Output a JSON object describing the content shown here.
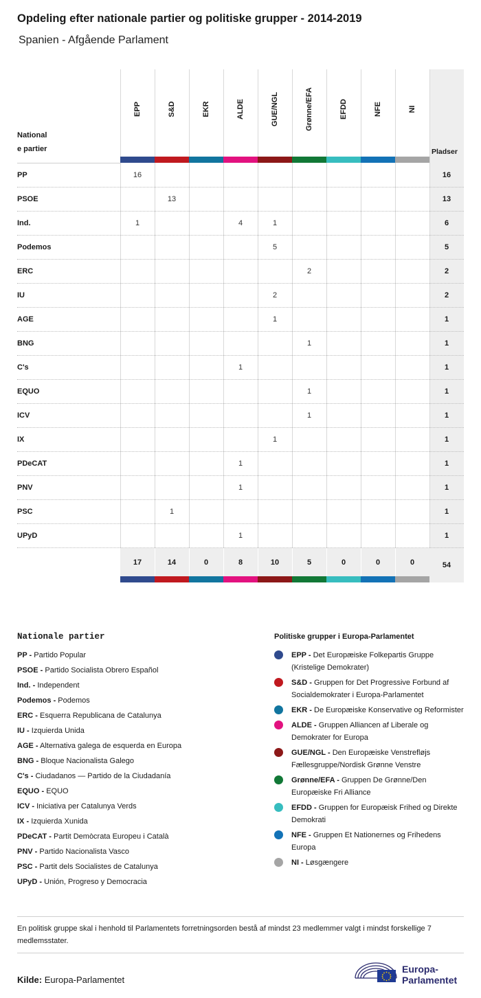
{
  "title": "Opdeling efter nationale partier og politiske grupper - 2014-2019",
  "subtitle": "Spanien - Afgående Parlament",
  "table": {
    "national_header_line1": "National",
    "national_header_line2": "e partier",
    "seats_header": "Pladser",
    "groups": [
      {
        "key": "EPP",
        "color": "#2f4a8d"
      },
      {
        "key": "S&D",
        "color": "#c0191f"
      },
      {
        "key": "EKR",
        "color": "#11759f"
      },
      {
        "key": "ALDE",
        "color": "#e2127f"
      },
      {
        "key": "GUE/NGL",
        "color": "#8c1818"
      },
      {
        "key": "Grønne/EFA",
        "color": "#117836"
      },
      {
        "key": "EFDD",
        "color": "#37bdbf"
      },
      {
        "key": "NFE",
        "color": "#1372b6"
      },
      {
        "key": "NI",
        "color": "#a5a5a5"
      }
    ],
    "rows": [
      {
        "party": "PP",
        "values": [
          "16",
          "",
          "",
          "",
          "",
          "",
          "",
          "",
          ""
        ],
        "seats": "16"
      },
      {
        "party": "PSOE",
        "values": [
          "",
          "13",
          "",
          "",
          "",
          "",
          "",
          "",
          ""
        ],
        "seats": "13"
      },
      {
        "party": "Ind.",
        "values": [
          "1",
          "",
          "",
          "4",
          "1",
          "",
          "",
          "",
          ""
        ],
        "seats": "6"
      },
      {
        "party": "Podemos",
        "values": [
          "",
          "",
          "",
          "",
          "5",
          "",
          "",
          "",
          ""
        ],
        "seats": "5"
      },
      {
        "party": "ERC",
        "values": [
          "",
          "",
          "",
          "",
          "",
          "2",
          "",
          "",
          ""
        ],
        "seats": "2"
      },
      {
        "party": "IU",
        "values": [
          "",
          "",
          "",
          "",
          "2",
          "",
          "",
          "",
          ""
        ],
        "seats": "2"
      },
      {
        "party": "AGE",
        "values": [
          "",
          "",
          "",
          "",
          "1",
          "",
          "",
          "",
          ""
        ],
        "seats": "1"
      },
      {
        "party": "BNG",
        "values": [
          "",
          "",
          "",
          "",
          "",
          "1",
          "",
          "",
          ""
        ],
        "seats": "1"
      },
      {
        "party": "C's",
        "values": [
          "",
          "",
          "",
          "1",
          "",
          "",
          "",
          "",
          ""
        ],
        "seats": "1"
      },
      {
        "party": "EQUO",
        "values": [
          "",
          "",
          "",
          "",
          "",
          "1",
          "",
          "",
          ""
        ],
        "seats": "1"
      },
      {
        "party": "ICV",
        "values": [
          "",
          "",
          "",
          "",
          "",
          "1",
          "",
          "",
          ""
        ],
        "seats": "1"
      },
      {
        "party": "IX",
        "values": [
          "",
          "",
          "",
          "",
          "1",
          "",
          "",
          "",
          ""
        ],
        "seats": "1"
      },
      {
        "party": "PDeCAT",
        "values": [
          "",
          "",
          "",
          "1",
          "",
          "",
          "",
          "",
          ""
        ],
        "seats": "1"
      },
      {
        "party": "PNV",
        "values": [
          "",
          "",
          "",
          "1",
          "",
          "",
          "",
          "",
          ""
        ],
        "seats": "1"
      },
      {
        "party": "PSC",
        "values": [
          "",
          "1",
          "",
          "",
          "",
          "",
          "",
          "",
          ""
        ],
        "seats": "1"
      },
      {
        "party": "UPyD",
        "values": [
          "",
          "",
          "",
          "1",
          "",
          "",
          "",
          "",
          ""
        ],
        "seats": "1"
      }
    ],
    "totals": [
      "17",
      "14",
      "0",
      "8",
      "10",
      "5",
      "0",
      "0",
      "0"
    ],
    "grand_total": "54"
  },
  "national_legend": {
    "heading": "Nationale partier",
    "items": [
      {
        "abbr": "PP -",
        "name": "Partido Popular"
      },
      {
        "abbr": "PSOE -",
        "name": "Partido Socialista Obrero Español"
      },
      {
        "abbr": "Ind. -",
        "name": "Independent"
      },
      {
        "abbr": "Podemos -",
        "name": "Podemos"
      },
      {
        "abbr": "ERC -",
        "name": "Esquerra Republicana de Catalunya"
      },
      {
        "abbr": "IU -",
        "name": "Izquierda Unida"
      },
      {
        "abbr": "AGE -",
        "name": "Alternativa galega de esquerda en Europa"
      },
      {
        "abbr": "BNG -",
        "name": "Bloque Nacionalista Galego"
      },
      {
        "abbr": "C's -",
        "name": "Ciudadanos — Partido de la Ciudadanía"
      },
      {
        "abbr": "EQUO -",
        "name": "EQUO"
      },
      {
        "abbr": "ICV -",
        "name": "Iniciativa per Catalunya Verds"
      },
      {
        "abbr": "IX -",
        "name": "Izquierda Xunida"
      },
      {
        "abbr": "PDeCAT -",
        "name": "Partit Demòcrata Europeu i Català"
      },
      {
        "abbr": "PNV -",
        "name": "Partido Nacionalista Vasco"
      },
      {
        "abbr": "PSC -",
        "name": "Partit dels Socialistes de Catalunya"
      },
      {
        "abbr": "UPyD -",
        "name": "Unión, Progreso y Democracia"
      }
    ]
  },
  "group_legend": {
    "heading": "Politiske grupper i Europa-Parlamentet",
    "items": [
      {
        "abbr": "EPP -",
        "name": "Det Europæiske Folkepartis Gruppe (Kristelige Demokrater)",
        "color": "#2f4a8d"
      },
      {
        "abbr": "S&D -",
        "name": "Gruppen for Det Progressive Forbund af Socialdemokrater i Europa-Parlamentet",
        "color": "#c0191f"
      },
      {
        "abbr": "EKR -",
        "name": "De Europæiske Konservative og Reformister",
        "color": "#11759f"
      },
      {
        "abbr": "ALDE -",
        "name": "Gruppen Alliancen af Liberale og Demokrater for Europa",
        "color": "#e2127f"
      },
      {
        "abbr": "GUE/NGL -",
        "name": "Den Europæiske Venstrefløjs Fællesgruppe/Nordisk Grønne Venstre",
        "color": "#8c1818"
      },
      {
        "abbr": "Grønne/EFA -",
        "name": "Gruppen De Grønne/Den Europæiske Fri Alliance",
        "color": "#117836"
      },
      {
        "abbr": "EFDD -",
        "name": "Gruppen for Europæisk Frihed og Direkte Demokrati",
        "color": "#37bdbf"
      },
      {
        "abbr": "NFE -",
        "name": "Gruppen Et Nationernes og Frihedens Europa",
        "color": "#1372b6"
      },
      {
        "abbr": "NI -",
        "name": "Løsgængere",
        "color": "#a5a5a5"
      }
    ]
  },
  "note": "En politisk gruppe skal i henhold til Parlamentets forretningsorden bestå af mindst 23 medlemmer valgt i mindst forskellige 7 medlemsstater.",
  "source": {
    "label": "Kilde:",
    "value": "Europa-Parlamentet"
  },
  "logo": {
    "line1": "Europa-",
    "line2": "Parlamentet",
    "icon": "european-parliament-emblem-icon"
  }
}
